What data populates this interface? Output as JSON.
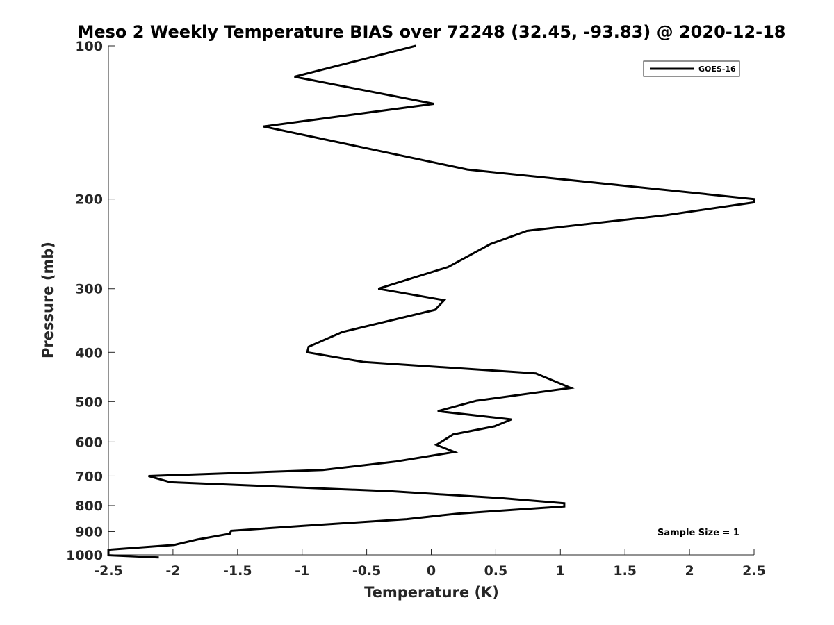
{
  "chart_data": {
    "type": "line",
    "title": "Meso 2 Weekly Temperature BIAS over 72248 (32.45, -93.83) @ 2020-12-18",
    "xlabel": "Temperature (K)",
    "ylabel": "Pressure (mb)",
    "xlim": [
      -2.5,
      2.5
    ],
    "ylim": [
      100,
      1000
    ],
    "yscale": "log",
    "y_reversed": true,
    "grid": false,
    "legend_position": "top-right",
    "x_ticks": [
      -2.5,
      -2,
      -1.5,
      -1,
      -0.5,
      0,
      0.5,
      1,
      1.5,
      2,
      2.5
    ],
    "x_tick_labels": [
      "-2.5",
      "-2",
      "-1.5",
      "-1",
      "-0.5",
      "0",
      "0.5",
      "1",
      "1.5",
      "2",
      "2.5"
    ],
    "y_ticks": [
      100,
      200,
      300,
      400,
      500,
      600,
      700,
      800,
      900,
      1000
    ],
    "y_tick_labels": [
      "100",
      "200",
      "300",
      "400",
      "500",
      "600",
      "700",
      "800",
      "900",
      "1000"
    ],
    "annotation": "Sample Size = 1",
    "series": [
      {
        "name": "GOES-16",
        "color": "#000000",
        "x": [
          -0.12,
          -1.06,
          0.02,
          -1.3,
          0.28,
          2.5,
          2.5,
          1.82,
          0.74,
          0.46,
          0.13,
          -0.41,
          0.1,
          0.03,
          -0.69,
          -0.95,
          -0.96,
          -0.52,
          0.81,
          1.08,
          0.35,
          0.05,
          0.62,
          0.49,
          0.17,
          0.04,
          0.18,
          -0.28,
          -0.84,
          -2.19,
          -2.02,
          -0.31,
          0.55,
          1.03,
          1.03,
          0.2,
          -0.19,
          -0.99,
          -1.55,
          -1.56,
          -1.81,
          -1.99,
          -2.5,
          -2.5,
          -2.11
        ],
        "y": [
          100,
          115,
          130,
          144,
          175,
          200,
          203,
          215,
          231,
          245,
          272,
          300,
          316,
          330,
          365,
          390,
          400,
          418,
          440,
          470,
          498,
          522,
          542,
          559,
          580,
          608,
          628,
          656,
          681,
          700,
          720,
          750,
          774,
          792,
          803,
          830,
          851,
          877,
          897,
          909,
          933,
          956,
          977,
          1002,
          1012
        ]
      }
    ]
  }
}
